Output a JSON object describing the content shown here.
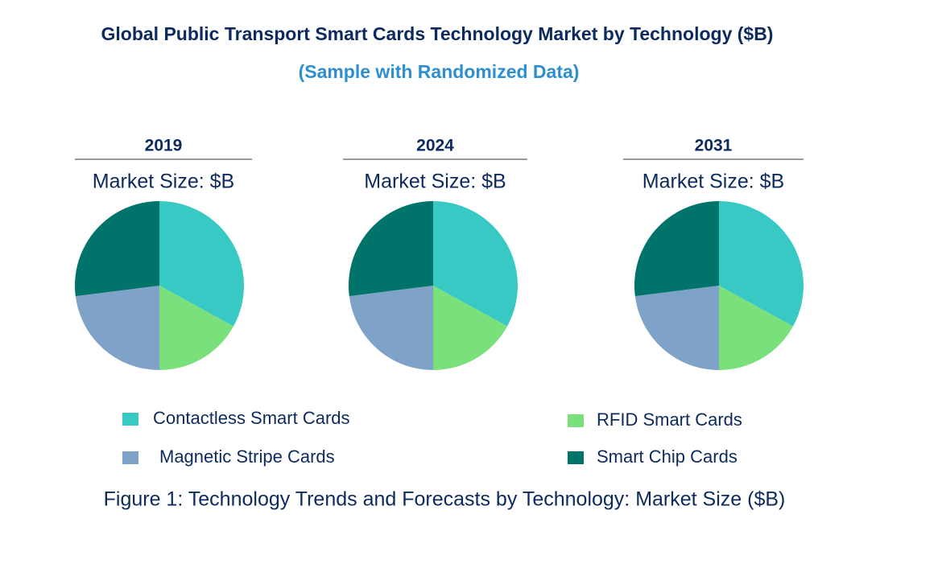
{
  "title": "Global Public Transport Smart Cards Technology Market by  Technology ($B)",
  "subtitle": "(Sample with Randomized Data)",
  "caption": "Figure 1: Technology Trends and Forecasts by Technology: Market Size ($B)",
  "legend": [
    {
      "name": "Contactless Smart Cards",
      "color": "#38c9c4"
    },
    {
      "name": "RFID Smart Cards",
      "color": "#7ae07c"
    },
    {
      "name": "Magnetic Stripe Cards",
      "color": "#7fa3c8"
    },
    {
      "name": "Smart Chip Cards",
      "color": "#00736b"
    }
  ],
  "chart_data": [
    {
      "type": "pie",
      "title": "2019",
      "subtitle": "Market Size: $B",
      "values": [
        33,
        17,
        23,
        27
      ]
    },
    {
      "type": "pie",
      "title": "2024",
      "subtitle": "Market Size: $B",
      "values": [
        33,
        17,
        23,
        27
      ]
    },
    {
      "type": "pie",
      "title": "2031",
      "subtitle": "Market Size: $B",
      "values": [
        33,
        17,
        23,
        27
      ]
    }
  ]
}
